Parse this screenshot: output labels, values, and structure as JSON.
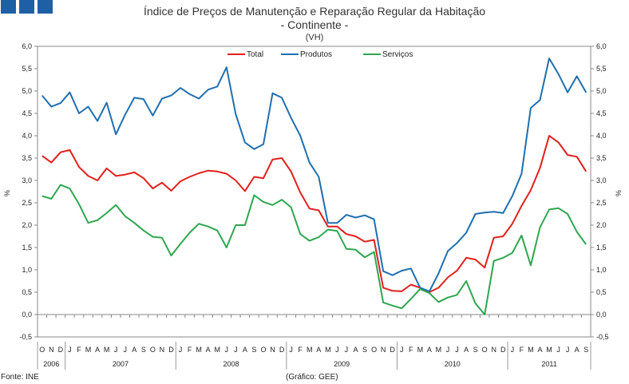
{
  "header": {
    "title_line1": "Índice de Preços de Manutenção e Reparação Regular da Habitação",
    "title_line2": "- Continente -",
    "title_line3": "(VH)"
  },
  "footer": {
    "source": "Fonte: INE",
    "credit": "(Gráfico: GEE)"
  },
  "chart_data": {
    "type": "line",
    "title": "Índice de Preços de Manutenção e Reparação Regular da Habitação - Continente - (VH)",
    "ylabel": "%",
    "ylabel_right": "%",
    "ylim": [
      -0.5,
      6.0
    ],
    "yticks": [
      "-0,5",
      "0,0",
      "0,5",
      "1,0",
      "1,5",
      "2,0",
      "2,5",
      "3,0",
      "3,5",
      "4,0",
      "4,5",
      "5,0",
      "5,5",
      "6,0"
    ],
    "grid": false,
    "legend_position": "top-center",
    "months": [
      "O",
      "N",
      "D",
      "J",
      "F",
      "M",
      "A",
      "M",
      "J",
      "J",
      "A",
      "S",
      "O",
      "N",
      "D",
      "J",
      "F",
      "M",
      "A",
      "M",
      "J",
      "J",
      "A",
      "S",
      "O",
      "N",
      "D",
      "J",
      "F",
      "M",
      "A",
      "M",
      "J",
      "J",
      "A",
      "S",
      "O",
      "N",
      "D",
      "J",
      "F",
      "M",
      "A",
      "M",
      "J",
      "J",
      "A",
      "S",
      "O",
      "N",
      "D",
      "J",
      "F",
      "M",
      "A",
      "M",
      "J",
      "J",
      "A",
      "S"
    ],
    "years": [
      {
        "label": "2006",
        "start": 0,
        "count": 3
      },
      {
        "label": "2007",
        "start": 3,
        "count": 12
      },
      {
        "label": "2008",
        "start": 15,
        "count": 12
      },
      {
        "label": "2009",
        "start": 27,
        "count": 12
      },
      {
        "label": "2010",
        "start": 39,
        "count": 12
      },
      {
        "label": "2011",
        "start": 51,
        "count": 9
      }
    ],
    "series": [
      {
        "name": "Total",
        "color": "#e0201b",
        "values": [
          3.55,
          3.4,
          3.63,
          3.68,
          3.3,
          3.1,
          3.0,
          3.27,
          3.1,
          3.13,
          3.18,
          3.05,
          2.82,
          2.95,
          2.77,
          2.98,
          3.08,
          3.16,
          3.22,
          3.2,
          3.15,
          3.0,
          2.76,
          3.08,
          3.05,
          3.47,
          3.5,
          3.2,
          2.73,
          2.37,
          2.33,
          1.97,
          1.97,
          1.8,
          1.75,
          1.63,
          1.67,
          0.6,
          0.53,
          0.52,
          0.67,
          0.6,
          0.5,
          0.6,
          0.83,
          0.98,
          1.27,
          1.23,
          1.05,
          1.72,
          1.75,
          2.03,
          2.43,
          2.78,
          3.28,
          4.0,
          3.85,
          3.57,
          3.53,
          3.2
        ]
      },
      {
        "name": "Produtos",
        "color": "#1f6faf",
        "values": [
          4.9,
          4.65,
          4.73,
          4.97,
          4.5,
          4.65,
          4.33,
          4.74,
          4.03,
          4.47,
          4.85,
          4.82,
          4.45,
          4.83,
          4.9,
          5.07,
          4.93,
          4.83,
          5.03,
          5.1,
          5.53,
          4.48,
          3.85,
          3.7,
          3.81,
          4.95,
          4.85,
          4.4,
          4.0,
          3.4,
          3.08,
          2.05,
          2.05,
          2.23,
          2.17,
          2.22,
          2.13,
          0.97,
          0.88,
          0.98,
          1.03,
          0.6,
          0.52,
          0.92,
          1.42,
          1.6,
          1.83,
          2.25,
          2.28,
          2.3,
          2.27,
          2.65,
          3.15,
          4.62,
          4.8,
          5.73,
          5.38,
          4.97,
          5.33,
          4.97
        ]
      },
      {
        "name": "Serviços",
        "color": "#2ea64f",
        "values": [
          2.65,
          2.59,
          2.9,
          2.82,
          2.47,
          2.05,
          2.11,
          2.27,
          2.45,
          2.2,
          2.05,
          1.88,
          1.74,
          1.72,
          1.32,
          1.58,
          1.83,
          2.03,
          1.97,
          1.88,
          1.5,
          2.0,
          2.0,
          2.67,
          2.52,
          2.45,
          2.57,
          2.4,
          1.8,
          1.65,
          1.73,
          1.9,
          1.87,
          1.47,
          1.45,
          1.28,
          1.4,
          0.27,
          0.2,
          0.14,
          0.35,
          0.57,
          0.48,
          0.28,
          0.38,
          0.44,
          0.75,
          0.25,
          0.0,
          1.2,
          1.27,
          1.38,
          1.77,
          1.1,
          1.95,
          2.35,
          2.38,
          2.25,
          1.85,
          1.57
        ]
      }
    ]
  }
}
